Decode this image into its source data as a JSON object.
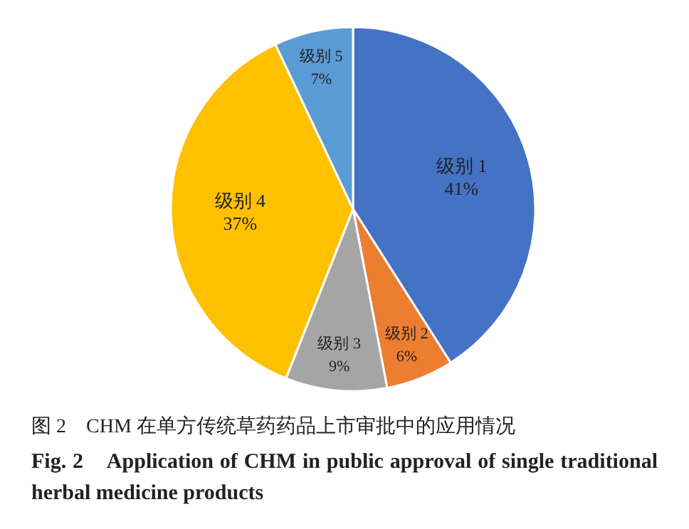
{
  "chart_data": {
    "type": "pie",
    "categories": [
      "级别 1",
      "级别 2",
      "级别 3",
      "级别 4",
      "级别 5"
    ],
    "values": [
      41,
      6,
      9,
      37,
      7
    ],
    "colors": [
      "#4472c4",
      "#ed7d31",
      "#a5a5a5",
      "#ffc000",
      "#5b9bd5"
    ],
    "value_labels": [
      "41%",
      "6%",
      "9%",
      "37%",
      "7%"
    ],
    "legend": false,
    "annotations": [
      "图 2　CHM 在单方传统草药药品上市审批中的应用情况",
      "Fig. 2　Application of CHM in public approval of single traditional herbal medicine products"
    ]
  }
}
